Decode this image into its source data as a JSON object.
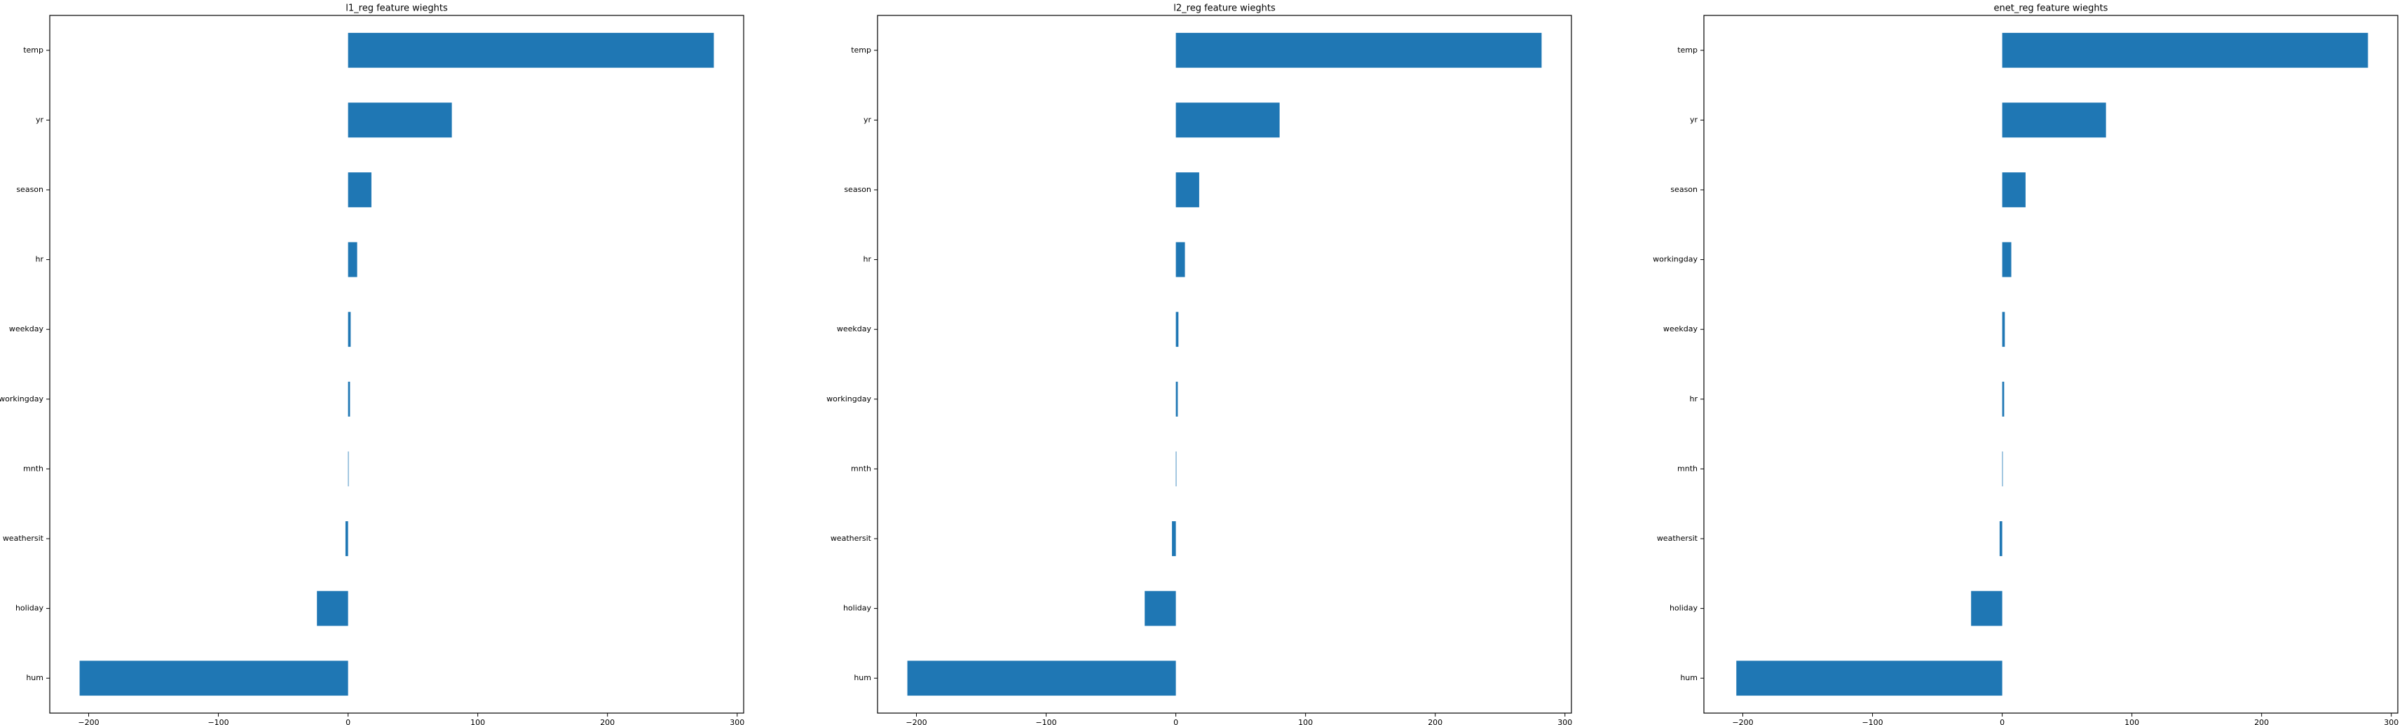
{
  "figure": {
    "background": "#ffffff",
    "bar_color": "#1f77b4",
    "axes_color": "#000000"
  },
  "chart_data": [
    {
      "type": "bar",
      "orientation": "horizontal",
      "title": "l1_reg feature wieghts",
      "xlabel": "",
      "ylabel": "",
      "xlim": [
        -230,
        305
      ],
      "xticks": [
        -200,
        -100,
        0,
        100,
        200,
        300
      ],
      "xtick_labels": [
        "−200",
        "−100",
        "0",
        "100",
        "200",
        "300"
      ],
      "grid": false,
      "categories": [
        "temp",
        "yr",
        "season",
        "hr",
        "weekday",
        "workingday",
        "mnth",
        "weathersit",
        "holiday",
        "hum"
      ],
      "values": [
        282,
        80,
        18,
        7,
        2,
        1.5,
        0.3,
        -2,
        -24,
        -207
      ]
    },
    {
      "type": "bar",
      "orientation": "horizontal",
      "title": "l2_reg feature wieghts",
      "xlabel": "",
      "ylabel": "",
      "xlim": [
        -230,
        305
      ],
      "xticks": [
        -200,
        -100,
        0,
        100,
        200,
        300
      ],
      "xtick_labels": [
        "−200",
        "−100",
        "0",
        "100",
        "200",
        "300"
      ],
      "grid": false,
      "categories": [
        "temp",
        "yr",
        "season",
        "hr",
        "weekday",
        "workingday",
        "mnth",
        "weathersit",
        "holiday",
        "hum"
      ],
      "values": [
        282,
        80,
        18,
        7,
        2,
        1.5,
        0.3,
        -3,
        -24,
        -207
      ]
    },
    {
      "type": "bar",
      "orientation": "horizontal",
      "title": "enet_reg feature wieghts",
      "xlabel": "",
      "ylabel": "",
      "xlim": [
        -230,
        305
      ],
      "xticks": [
        -200,
        -100,
        0,
        100,
        200,
        300
      ],
      "xtick_labels": [
        "−200",
        "−100",
        "0",
        "100",
        "200",
        "300"
      ],
      "grid": false,
      "categories": [
        "temp",
        "yr",
        "season",
        "workingday",
        "weekday",
        "hr",
        "mnth",
        "weathersit",
        "holiday",
        "hum"
      ],
      "values": [
        282,
        80,
        18,
        7,
        2,
        1.5,
        0.3,
        -2,
        -24,
        -205
      ]
    }
  ]
}
